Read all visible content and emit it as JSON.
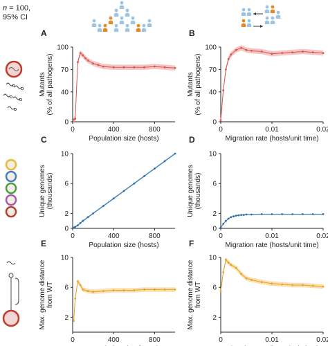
{
  "figure_note": {
    "n_label": "n",
    "n_value": " = 100,",
    "ci": "95% CI"
  },
  "colors": {
    "red": "#d9534f",
    "red_band": "#f4b8b6",
    "blue": "#2f6ea8",
    "blue_band": "#a9c9e6",
    "orange": "#e8a025",
    "orange_band": "#f7d89a",
    "host_blue": "#9cc4e4",
    "host_orange": "#e08a2c",
    "pathogen_red": "#c0392b"
  },
  "icons": {
    "top_left": "host-population-pyramid-icon",
    "top_right": "host-migration-icon",
    "row1": "mutant-pathogens-icon",
    "row2": "unique-genome-pathogens-icon",
    "row3": "genome-distance-icon"
  },
  "chart_data": [
    {
      "panel": "A",
      "type": "line",
      "xlabel": "Population size (hosts)",
      "ylabel": "Mutants",
      "ylabel2": "(% of all pathogens)",
      "xlim": [
        0,
        1000
      ],
      "ylim": [
        0,
        100
      ],
      "xticks": [
        0,
        400,
        800
      ],
      "xtick_labels": [
        "0",
        "400",
        "800"
      ],
      "yticks": [
        0,
        40,
        70,
        100
      ],
      "ytick_labels": [
        "0",
        "40",
        "70",
        "100"
      ],
      "color": "red",
      "x": [
        10,
        25,
        50,
        75,
        100,
        125,
        150,
        200,
        250,
        300,
        400,
        500,
        600,
        700,
        800,
        900,
        1000
      ],
      "y": [
        3,
        4,
        80,
        92,
        89,
        85,
        82,
        78,
        76,
        74,
        73,
        73,
        73,
        73,
        74,
        73,
        72
      ]
    },
    {
      "panel": "B",
      "type": "line",
      "xlabel": "Migration rate (hosts/unit time)",
      "ylabel": "Mutants",
      "ylabel2": "(% of all pathogens)",
      "xlim": [
        0,
        0.02
      ],
      "ylim": [
        0,
        100
      ],
      "xticks": [
        0,
        0.01,
        0.02
      ],
      "xtick_labels": [
        "0",
        "0.01",
        "0.02"
      ],
      "yticks": [
        0,
        40,
        70,
        100
      ],
      "ytick_labels": [
        "0",
        "40",
        "70",
        "100"
      ],
      "color": "red",
      "x": [
        0,
        0.0005,
        0.001,
        0.0015,
        0.002,
        0.003,
        0.004,
        0.005,
        0.006,
        0.008,
        0.01,
        0.012,
        0.014,
        0.016,
        0.018,
        0.02
      ],
      "y": [
        2,
        42,
        70,
        84,
        90,
        96,
        99,
        96,
        95,
        94,
        91,
        92,
        93,
        94,
        93,
        92
      ]
    },
    {
      "panel": "C",
      "type": "line",
      "xlabel": "Population size (hosts)",
      "ylabel": "Unique genomes",
      "ylabel2": "(thousands)",
      "xlim": [
        0,
        1000
      ],
      "ylim": [
        0,
        10
      ],
      "xticks": [
        0,
        400,
        800
      ],
      "xtick_labels": [
        "0",
        "400",
        "800"
      ],
      "yticks": [
        0,
        2,
        6,
        10
      ],
      "ytick_labels": [
        "0",
        "2",
        "6",
        "10"
      ],
      "color": "blue",
      "x": [
        10,
        25,
        50,
        75,
        100,
        150,
        200,
        300,
        400,
        500,
        600,
        700,
        800,
        900,
        1000
      ],
      "y": [
        0.1,
        0.2,
        0.4,
        0.7,
        1.0,
        1.5,
        2.0,
        3.0,
        4.0,
        5.0,
        6.0,
        7.0,
        8.0,
        9.0,
        10.0
      ]
    },
    {
      "panel": "D",
      "type": "line",
      "xlabel": "Migration rate (hosts/unit time)",
      "ylabel": "Unique genomes",
      "ylabel2": "(thousands)",
      "xlim": [
        0,
        0.02
      ],
      "ylim": [
        0,
        10
      ],
      "xticks": [
        0,
        0.01,
        0.02
      ],
      "xtick_labels": [
        "0",
        "0.01",
        "0.02"
      ],
      "yticks": [
        0,
        2,
        6,
        10
      ],
      "ytick_labels": [
        "0",
        "2",
        "6",
        "10"
      ],
      "color": "blue",
      "x": [
        0,
        0.0005,
        0.001,
        0.0015,
        0.002,
        0.0025,
        0.003,
        0.0035,
        0.004,
        0.0045,
        0.005,
        0.006,
        0.008,
        0.01,
        0.012,
        0.014,
        0.016,
        0.018,
        0.02
      ],
      "y": [
        0.1,
        0.6,
        1.0,
        1.3,
        1.5,
        1.6,
        1.7,
        1.75,
        1.8,
        1.8,
        1.85,
        1.85,
        1.9,
        1.9,
        1.9,
        1.9,
        1.9,
        1.9,
        1.9
      ]
    },
    {
      "panel": "E",
      "type": "line",
      "xlabel": "Population size (hosts)",
      "ylabel": "Max. genome distance",
      "ylabel2": "from WT",
      "xlim": [
        0,
        1000
      ],
      "ylim": [
        0,
        10
      ],
      "xticks": [
        0,
        400,
        800
      ],
      "xtick_labels": [
        "0",
        "400",
        "800"
      ],
      "yticks": [
        2,
        6,
        10
      ],
      "ytick_labels": [
        "2",
        "6",
        "10"
      ],
      "color": "orange",
      "x": [
        10,
        25,
        50,
        75,
        100,
        150,
        200,
        300,
        400,
        500,
        600,
        700,
        800,
        900,
        1000
      ],
      "y": [
        1.5,
        4.5,
        6.8,
        6.3,
        5.7,
        5.5,
        5.4,
        5.5,
        5.6,
        5.6,
        5.6,
        5.7,
        5.7,
        5.7,
        5.7
      ]
    },
    {
      "panel": "F",
      "type": "line",
      "xlabel": "Migration rate (hosts/unit time)",
      "ylabel": "Max. genome distance",
      "ylabel2": "from WT",
      "xlim": [
        0,
        0.02
      ],
      "ylim": [
        0,
        10
      ],
      "xticks": [
        0,
        0.01,
        0.02
      ],
      "xtick_labels": [
        "0",
        "0.01",
        "0.02"
      ],
      "yticks": [
        2,
        6,
        10
      ],
      "ytick_labels": [
        "2",
        "6",
        "10"
      ],
      "color": "orange",
      "x": [
        0,
        0.0005,
        0.001,
        0.0015,
        0.002,
        0.003,
        0.004,
        0.005,
        0.006,
        0.008,
        0.01,
        0.012,
        0.014,
        0.016,
        0.018,
        0.02
      ],
      "y": [
        5.5,
        8.0,
        9.7,
        9.3,
        9.0,
        8.6,
        7.8,
        7.2,
        7.0,
        6.7,
        6.5,
        6.4,
        6.3,
        6.3,
        6.2,
        6.1
      ]
    }
  ]
}
